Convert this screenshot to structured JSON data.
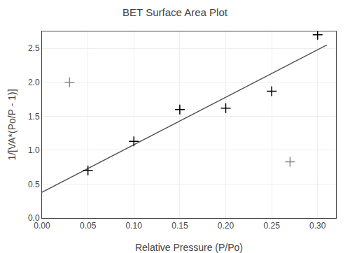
{
  "chart_data": {
    "type": "scatter",
    "title": "BET Surface Area Plot",
    "xlabel": "Relative Pressure (P/Po)",
    "ylabel": "1/[VA*(Po/P - 1)]",
    "xlim": [
      0.0,
      0.32
    ],
    "ylim": [
      0.0,
      2.75
    ],
    "xticks": [
      {
        "value": 0.0,
        "label": "0.00"
      },
      0.05,
      {
        "value": 0.1,
        "label": "0.10"
      },
      0.15,
      {
        "value": 0.2,
        "label": "0.20"
      },
      0.25,
      {
        "value": 0.3,
        "label": "0.30"
      }
    ],
    "yticks": [
      {
        "value": 0.0,
        "label": "0.0"
      },
      0.5,
      {
        "value": 1.0,
        "label": "1.0"
      },
      1.5,
      {
        "value": 2.0,
        "label": "2.0"
      },
      2.5
    ],
    "grid": true,
    "series": [
      {
        "type": "line",
        "line_style": "solid",
        "color": "#555555",
        "x": [
          0.0,
          0.31
        ],
        "values": [
          0.38,
          2.55
        ]
      },
      {
        "type": "scatter",
        "marker": "plus",
        "color": "black",
        "x": [
          0.05,
          0.1,
          0.15,
          0.2,
          0.25,
          0.3
        ],
        "values": [
          0.7,
          1.13,
          1.6,
          1.62,
          1.87,
          2.7
        ]
      },
      {
        "type": "scatter",
        "marker": "plus",
        "color": "#888888",
        "x": [
          0.03
        ],
        "values": [
          2.0
        ]
      },
      {
        "type": "scatter",
        "marker": "plus",
        "color": "#888888",
        "x": [
          0.27
        ],
        "values": [
          0.83
        ]
      }
    ]
  }
}
